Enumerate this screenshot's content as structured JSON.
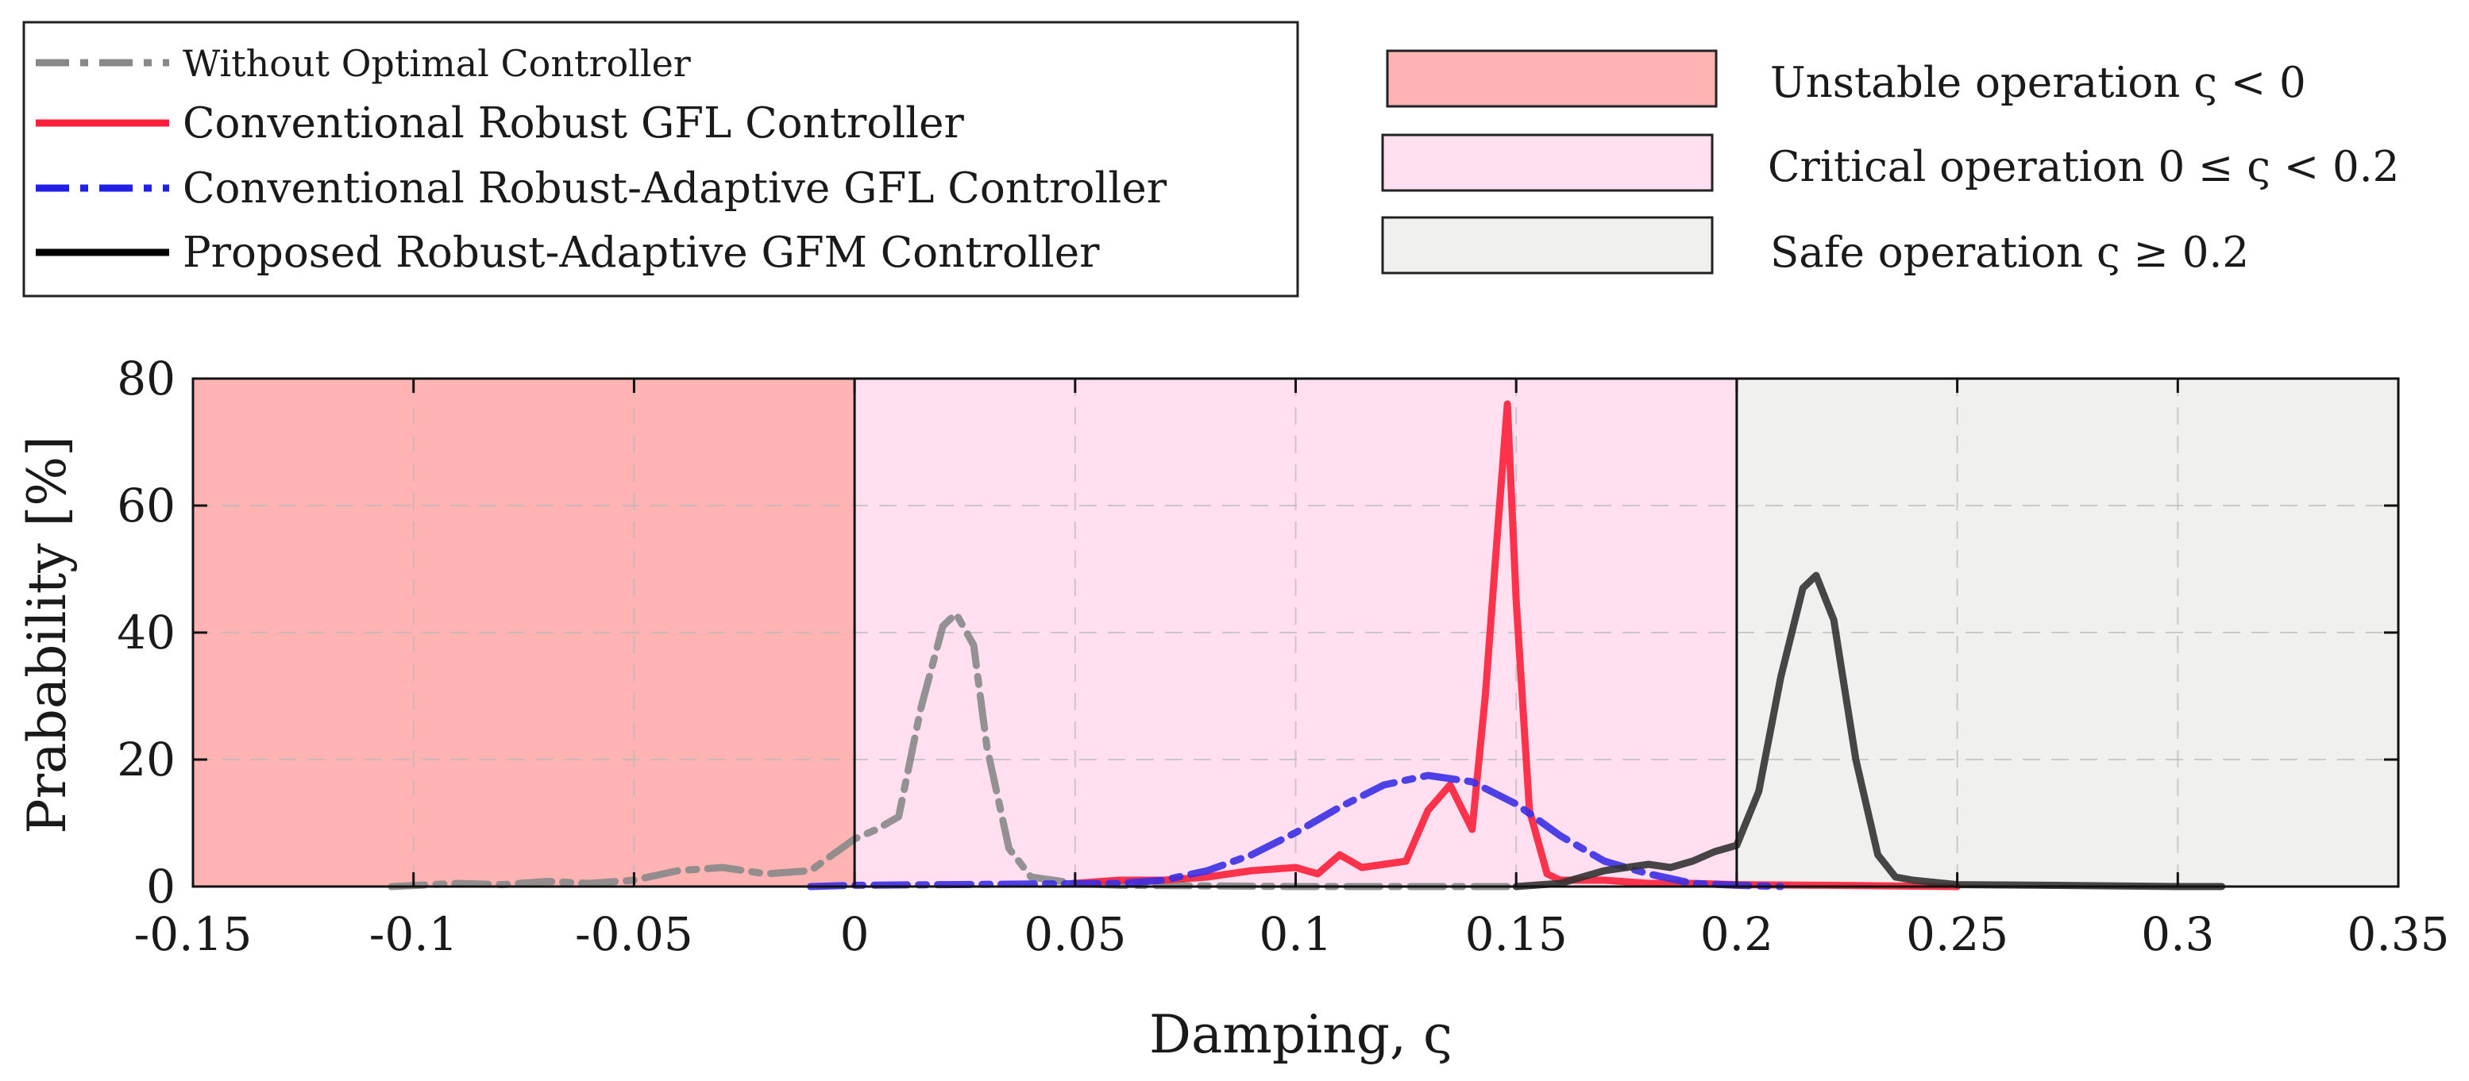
{
  "chart_data": {
    "type": "line",
    "title": "",
    "xlabel": "Damping, ς",
    "ylabel": "Prabability [%]",
    "xlim": [
      -0.15,
      0.35
    ],
    "ylim": [
      0,
      80
    ],
    "xticks": [
      -0.15,
      -0.1,
      -0.05,
      0,
      0.05,
      0.1,
      0.15,
      0.2,
      0.25,
      0.3,
      0.35
    ],
    "xtick_labels": [
      "-0.15",
      "-0.1",
      "-0.05",
      "0",
      "0.05",
      "0.1",
      "0.15",
      "0.2",
      "0.25",
      "0.3",
      "0.35"
    ],
    "yticks": [
      0,
      20,
      40,
      60,
      80
    ],
    "ytick_labels": [
      "0",
      "20",
      "40",
      "60",
      "80"
    ],
    "grid": true,
    "regions": [
      {
        "name": "Unstable operation",
        "label": "Unstable operation ς < 0",
        "from": -0.15,
        "to": 0,
        "color": "#ffb3b3"
      },
      {
        "name": "Critical operation",
        "label": "Critical operation 0 ≤ ς < 0.2",
        "from": 0,
        "to": 0.2,
        "color": "#ffdff0"
      },
      {
        "name": "Safe operation",
        "label": "Safe operation ς ≥ 0.2",
        "from": 0.2,
        "to": 0.35,
        "color": "#f0f0ee"
      }
    ],
    "series": [
      {
        "name": "Without Optimal Controller",
        "color": "#888888",
        "style": "dashdot",
        "x": [
          -0.105,
          -0.09,
          -0.08,
          -0.07,
          -0.06,
          -0.05,
          -0.04,
          -0.03,
          -0.02,
          -0.01,
          -0.005,
          0,
          0.005,
          0.01,
          0.015,
          0.02,
          0.023,
          0.027,
          0.03,
          0.035,
          0.04,
          0.05,
          0.06,
          0.1,
          0.15
        ],
        "values": [
          0,
          0.5,
          0.3,
          0.8,
          0.5,
          1.0,
          2.5,
          3.0,
          2.0,
          2.5,
          5.0,
          7.5,
          9.0,
          11.0,
          28.0,
          41.0,
          43.0,
          38.0,
          22.0,
          6.0,
          1.5,
          0.5,
          0.2,
          0.0,
          0.0
        ]
      },
      {
        "name": "Conventional Robust GFL Controller",
        "color": "#ff1f3a",
        "style": "solid",
        "x": [
          0.05,
          0.06,
          0.07,
          0.08,
          0.09,
          0.1,
          0.105,
          0.11,
          0.115,
          0.12,
          0.125,
          0.13,
          0.135,
          0.14,
          0.143,
          0.146,
          0.148,
          0.15,
          0.153,
          0.157,
          0.16,
          0.17,
          0.18,
          0.19,
          0.2,
          0.22,
          0.25
        ],
        "values": [
          0.5,
          1.0,
          1.0,
          1.5,
          2.5,
          3.0,
          2.0,
          5.0,
          3.0,
          3.5,
          4.0,
          12.0,
          16.0,
          9.0,
          30.0,
          58.0,
          76.0,
          45.0,
          12.0,
          2.0,
          1.0,
          1.0,
          0.5,
          0.5,
          0.3,
          0.2,
          0.0
        ]
      },
      {
        "name": "Conventional Robust-Adaptive GFL Controller",
        "color": "#3b2fe6",
        "style": "dashdot",
        "x": [
          -0.01,
          0,
          0.02,
          0.04,
          0.06,
          0.07,
          0.08,
          0.09,
          0.1,
          0.11,
          0.12,
          0.13,
          0.14,
          0.15,
          0.16,
          0.17,
          0.18,
          0.19,
          0.2,
          0.21
        ],
        "values": [
          0,
          0.2,
          0.3,
          0.4,
          0.5,
          1.0,
          2.5,
          5.0,
          8.5,
          12.5,
          16.0,
          17.5,
          16.5,
          13.0,
          8.0,
          4.0,
          2.0,
          0.5,
          0.2,
          0.0
        ]
      },
      {
        "name": "Proposed Robust-Adaptive GFM Controller",
        "color": "#333333",
        "style": "solid",
        "x": [
          0.15,
          0.16,
          0.17,
          0.18,
          0.185,
          0.19,
          0.195,
          0.2,
          0.205,
          0.21,
          0.215,
          0.218,
          0.222,
          0.227,
          0.232,
          0.236,
          0.24,
          0.25,
          0.27,
          0.3,
          0.31
        ],
        "values": [
          0,
          0.5,
          2.5,
          3.5,
          3.0,
          4.0,
          5.5,
          6.5,
          15.0,
          33.0,
          47.0,
          49.0,
          42.0,
          20.0,
          5.0,
          1.5,
          1.0,
          0.3,
          0.2,
          0.0,
          0.0
        ]
      }
    ]
  }
}
